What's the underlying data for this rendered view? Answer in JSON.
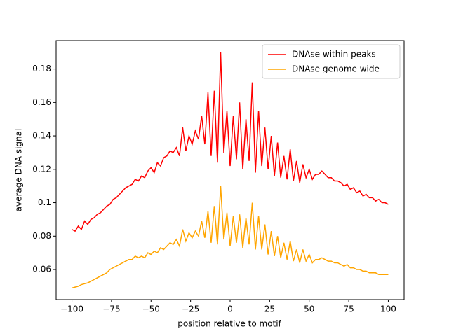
{
  "chart_data": {
    "type": "line",
    "x": [
      -100,
      -98,
      -96,
      -94,
      -92,
      -90,
      -88,
      -86,
      -84,
      -82,
      -80,
      -78,
      -76,
      -74,
      -72,
      -70,
      -68,
      -66,
      -64,
      -62,
      -60,
      -58,
      -56,
      -54,
      -52,
      -50,
      -48,
      -46,
      -44,
      -42,
      -40,
      -38,
      -36,
      -34,
      -32,
      -30,
      -28,
      -26,
      -24,
      -22,
      -20,
      -18,
      -16,
      -14,
      -12,
      -10,
      -8,
      -6,
      -4,
      -2,
      0,
      2,
      4,
      6,
      8,
      10,
      12,
      14,
      16,
      18,
      20,
      22,
      24,
      26,
      28,
      30,
      32,
      34,
      36,
      38,
      40,
      42,
      44,
      46,
      48,
      50,
      52,
      54,
      56,
      58,
      60,
      62,
      64,
      66,
      68,
      70,
      72,
      74,
      76,
      78,
      80,
      82,
      84,
      86,
      88,
      90,
      92,
      94,
      96,
      98,
      100
    ],
    "series": [
      {
        "name": "DNAse within peaks",
        "color": "#ff0000",
        "values": [
          0.084,
          0.083,
          0.086,
          0.084,
          0.089,
          0.087,
          0.09,
          0.091,
          0.093,
          0.094,
          0.096,
          0.098,
          0.099,
          0.102,
          0.103,
          0.105,
          0.107,
          0.109,
          0.11,
          0.111,
          0.114,
          0.113,
          0.116,
          0.115,
          0.119,
          0.121,
          0.118,
          0.124,
          0.122,
          0.127,
          0.128,
          0.131,
          0.13,
          0.133,
          0.128,
          0.145,
          0.131,
          0.14,
          0.135,
          0.143,
          0.138,
          0.152,
          0.135,
          0.166,
          0.128,
          0.167,
          0.124,
          0.19,
          0.13,
          0.155,
          0.122,
          0.152,
          0.126,
          0.16,
          0.12,
          0.15,
          0.125,
          0.172,
          0.118,
          0.155,
          0.122,
          0.145,
          0.12,
          0.14,
          0.116,
          0.136,
          0.115,
          0.128,
          0.114,
          0.132,
          0.113,
          0.125,
          0.112,
          0.123,
          0.115,
          0.12,
          0.114,
          0.117,
          0.117,
          0.119,
          0.117,
          0.115,
          0.115,
          0.113,
          0.113,
          0.112,
          0.11,
          0.111,
          0.108,
          0.109,
          0.106,
          0.107,
          0.104,
          0.105,
          0.103,
          0.103,
          0.101,
          0.102,
          0.1,
          0.1,
          0.099
        ]
      },
      {
        "name": "DNAse genome wide",
        "color": "#ffa500",
        "values": [
          0.049,
          0.0495,
          0.05,
          0.051,
          0.0515,
          0.052,
          0.053,
          0.054,
          0.055,
          0.056,
          0.057,
          0.058,
          0.06,
          0.061,
          0.062,
          0.063,
          0.064,
          0.065,
          0.066,
          0.066,
          0.068,
          0.067,
          0.068,
          0.067,
          0.07,
          0.069,
          0.071,
          0.07,
          0.073,
          0.072,
          0.074,
          0.076,
          0.075,
          0.078,
          0.074,
          0.084,
          0.077,
          0.082,
          0.079,
          0.083,
          0.08,
          0.089,
          0.079,
          0.095,
          0.076,
          0.098,
          0.075,
          0.11,
          0.078,
          0.094,
          0.074,
          0.092,
          0.076,
          0.093,
          0.073,
          0.091,
          0.075,
          0.1,
          0.072,
          0.092,
          0.072,
          0.087,
          0.069,
          0.083,
          0.068,
          0.08,
          0.067,
          0.076,
          0.066,
          0.077,
          0.065,
          0.072,
          0.064,
          0.072,
          0.065,
          0.069,
          0.064,
          0.066,
          0.066,
          0.067,
          0.066,
          0.065,
          0.065,
          0.064,
          0.064,
          0.063,
          0.062,
          0.063,
          0.061,
          0.061,
          0.06,
          0.06,
          0.059,
          0.059,
          0.058,
          0.058,
          0.058,
          0.057,
          0.057,
          0.057,
          0.057
        ]
      }
    ],
    "xlabel": "position relative to motif",
    "ylabel": "average DNA signal",
    "xlim": [
      -110,
      110
    ],
    "ylim": [
      0.042,
      0.197
    ],
    "xticks": [
      {
        "value": -100,
        "label": "−100"
      },
      {
        "value": -75,
        "label": "−75"
      },
      {
        "value": -50,
        "label": "−50"
      },
      {
        "value": -25,
        "label": "−25"
      },
      0,
      25,
      50,
      75,
      100
    ],
    "yticks": [
      0.06,
      0.08,
      0.1,
      0.12,
      0.14,
      0.16,
      0.18
    ],
    "legend": "upper right"
  }
}
